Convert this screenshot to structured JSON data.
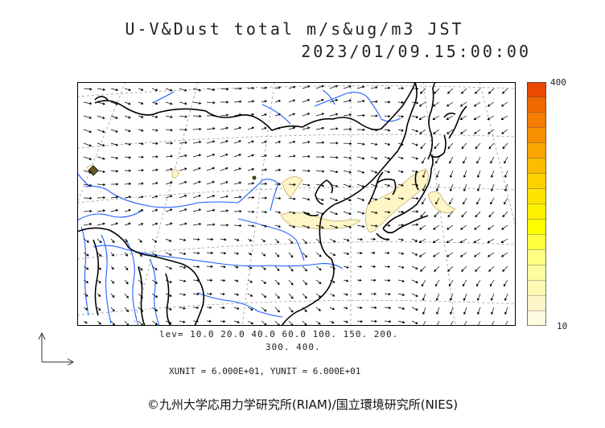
{
  "header": {
    "title": "U-V&Dust total m/s&ug/m3 JST",
    "datetime": "2023/01/09.15:00:00"
  },
  "colorbar": {
    "max_label": "400",
    "min_label": "10",
    "colors": [
      "#e84a00",
      "#ef6a00",
      "#f47d00",
      "#f88f00",
      "#fba600",
      "#fcbc00",
      "#fdd000",
      "#fde300",
      "#fff000",
      "#ffff00",
      "#ffff40",
      "#ffff80",
      "#fffca0",
      "#fff8b4",
      "#fff5c6",
      "#fffbe0"
    ]
  },
  "levels": {
    "line1": "lev= 10.0 20.0 40.0 60.0 100. 150. 200.",
    "line2": "300. 400."
  },
  "units": "XUNIT = 6.000E+01, YUNIT = 6.000E+01",
  "credit": "©九州大学応用力学研究所(RIAM)/国立環境研究所(NIES)",
  "icons": {
    "axes": "xy-axes-icon",
    "vectors": "wind-vector-arrows"
  },
  "map_colors": {
    "coast": "#000000",
    "rivers": "#1f5fff",
    "dust": "#fff5c6",
    "grid": "#9a9a9a"
  }
}
